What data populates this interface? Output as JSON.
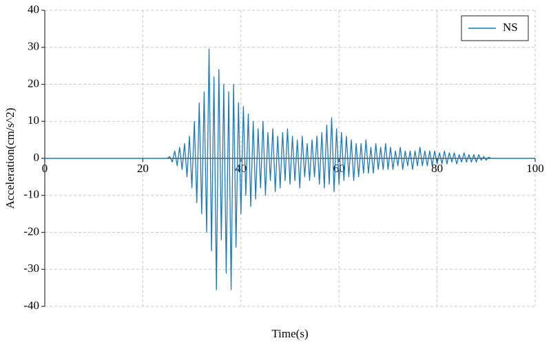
{
  "chart_data": {
    "type": "line",
    "x_label": "Time(s)",
    "y_label": "Acceleration(cm/s^2)",
    "x": [
      0,
      10,
      20,
      25,
      25.5,
      26,
      26.5,
      27,
      27.5,
      28,
      28.5,
      29,
      29.5,
      30,
      30.5,
      31,
      31.5,
      32,
      32.5,
      33,
      33.5,
      34,
      34.5,
      35,
      35.5,
      36,
      36.5,
      37,
      37.5,
      38,
      38.5,
      39,
      39.5,
      40,
      40.5,
      41,
      41.5,
      42,
      42.5,
      43,
      43.5,
      44,
      44.5,
      45,
      45.5,
      46,
      46.5,
      47,
      47.5,
      48,
      48.5,
      49,
      49.5,
      50,
      50.5,
      51,
      51.5,
      52,
      52.5,
      53,
      53.5,
      54,
      54.5,
      55,
      55.5,
      56,
      56.5,
      57,
      57.5,
      58,
      58.5,
      59,
      59.5,
      60,
      60.5,
      61,
      61.5,
      62,
      62.5,
      63,
      63.5,
      64,
      64.5,
      65,
      65.5,
      66,
      66.5,
      67,
      67.5,
      68,
      68.5,
      69,
      69.5,
      70,
      70.5,
      71,
      71.5,
      72,
      72.5,
      73,
      73.5,
      74,
      74.5,
      75,
      75.5,
      76,
      76.5,
      77,
      77.5,
      78,
      78.5,
      79,
      79.5,
      80,
      80.5,
      81,
      81.5,
      82,
      82.5,
      83,
      83.5,
      84,
      84.5,
      85,
      85.5,
      86,
      86.5,
      87,
      87.5,
      88,
      88.5,
      89,
      89.5,
      90,
      90.5,
      91,
      92,
      100
    ],
    "series": [
      {
        "name": "NS",
        "color": "#1f77b4",
        "values": [
          0,
          0,
          0,
          0,
          0.5,
          -1,
          2,
          -2,
          3,
          -3,
          4,
          -5,
          6,
          -8,
          10,
          -12,
          15,
          -15,
          18,
          -20,
          29.5,
          -25,
          22,
          -35.5,
          24,
          -22,
          20,
          -31,
          18,
          -35.5,
          20,
          -24,
          15,
          -15,
          14,
          -10,
          12,
          -13,
          10,
          -11,
          8,
          -8,
          10,
          -10,
          7,
          -6,
          8,
          -9,
          6,
          -8,
          7,
          -6,
          8,
          -7,
          6,
          -6,
          5,
          -8,
          6,
          -5,
          4,
          -6,
          5,
          -5,
          6,
          -7,
          7,
          -8,
          9,
          -7,
          11,
          -9,
          8,
          -7,
          7,
          -6,
          6,
          -5,
          5,
          -6,
          4,
          -5,
          4,
          -4,
          5,
          -4,
          3,
          -4,
          4,
          -3,
          3,
          -3,
          4,
          -3,
          3,
          -3,
          2,
          -2,
          3,
          -3,
          2,
          -2,
          2,
          -3,
          2,
          -2,
          3,
          -2,
          2,
          -2,
          2,
          -2,
          2,
          -1.5,
          1.5,
          -1.5,
          2,
          -1.5,
          1.5,
          -1,
          1.5,
          -1.5,
          1,
          -1,
          1.5,
          -1,
          1,
          -1,
          1,
          -1,
          1,
          -0.5,
          0.5,
          -0.5,
          0.3,
          0,
          0,
          0
        ]
      }
    ],
    "xlim": [
      0,
      100
    ],
    "xticks": [
      0,
      20,
      40,
      60,
      80,
      100
    ],
    "ylim": [
      -40,
      40
    ],
    "yticks": [
      -40,
      -30,
      -20,
      -10,
      0,
      10,
      20,
      30,
      40
    ],
    "grid": true,
    "legend": "upper right"
  }
}
